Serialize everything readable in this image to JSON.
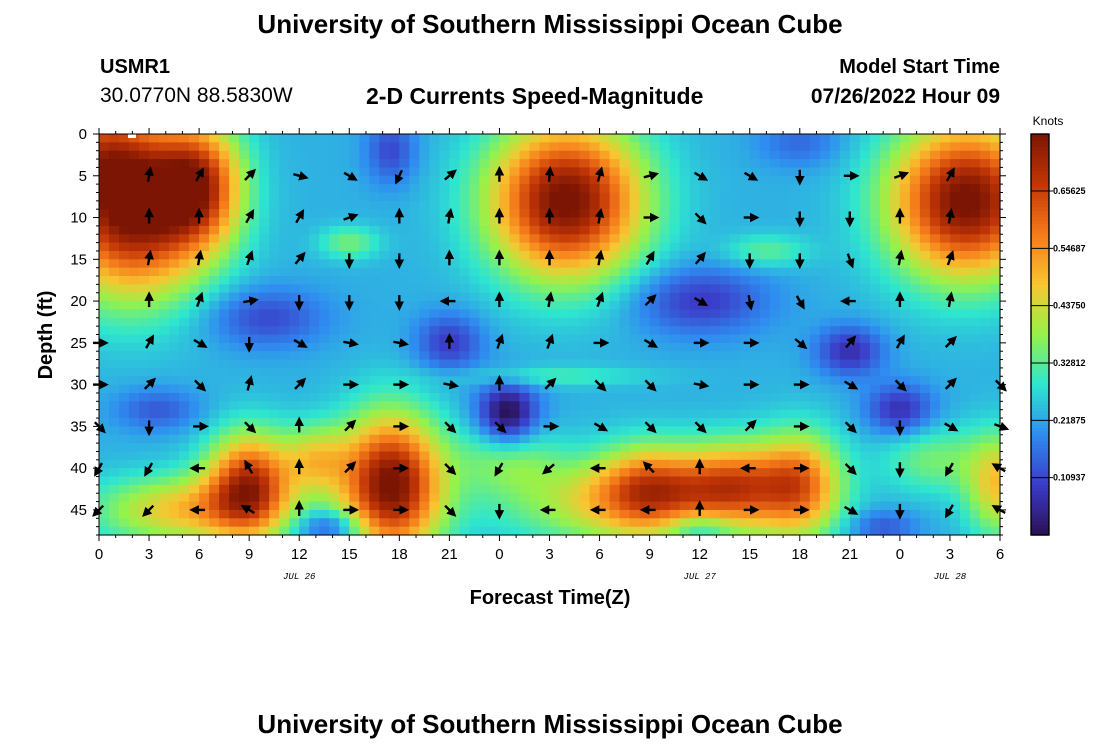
{
  "header": {
    "title": "University of Southern Mississippi Ocean Cube",
    "station": "USMR1",
    "coords": "30.0770N  88.5830W",
    "subtitle": "2-D Currents Speed-Magnitude",
    "start_label": "Model Start Time",
    "start_value": "07/26/2022 Hour 09"
  },
  "footer": {
    "title": "University of Southern Mississippi Ocean Cube"
  },
  "colors": {
    "colormap": [
      "#2a1055",
      "#3b3bc8",
      "#2f8cf0",
      "#2ee6cf",
      "#96f24a",
      "#f8c630",
      "#f57a1a",
      "#c23606",
      "#7c1503"
    ]
  },
  "chart_data": {
    "type": "heatmap",
    "title": "2-D Currents Speed-Magnitude",
    "xlabel": "Forecast Time(Z)",
    "ylabel": "Depth (ft)",
    "xlim": [
      0,
      54
    ],
    "ylim": [
      0,
      48
    ],
    "x_ticks": [
      0,
      3,
      6,
      9,
      12,
      15,
      18,
      21,
      24,
      27,
      30,
      33,
      36,
      39,
      42,
      45,
      48,
      51,
      54
    ],
    "x_tick_labels": [
      "0",
      "3",
      "6",
      "9",
      "12",
      "15",
      "18",
      "21",
      "0",
      "3",
      "6",
      "9",
      "12",
      "15",
      "18",
      "21",
      "0",
      "3",
      "6"
    ],
    "y_ticks": [
      0,
      5,
      10,
      15,
      20,
      25,
      30,
      35,
      40,
      45
    ],
    "y_tick_labels": [
      "0",
      "5",
      "10",
      "15",
      "20",
      "25",
      "30",
      "35",
      "40",
      "45"
    ],
    "date_labels": [
      {
        "x": 12,
        "text": "JUL 26"
      },
      {
        "x": 36,
        "text": "JUL 27"
      },
      {
        "x": 51,
        "text": "JUL 28"
      }
    ],
    "colorbar": {
      "title": "Knots",
      "range": [
        0,
        0.765
      ],
      "ticks": [
        0.65625,
        0.54687,
        0.4375,
        0.32812,
        0.21875,
        0.10937
      ],
      "tick_labels": [
        "0.65625",
        "0.54687",
        "0.43750",
        "0.32812",
        "0.21875",
        "0.10937"
      ]
    },
    "field": {
      "base": 0.23,
      "features": [
        {
          "x": 2,
          "y": 9,
          "sx": 4.5,
          "sy": 10,
          "v": 0.55
        },
        {
          "x": 0,
          "y": 2,
          "sx": 3,
          "sy": 6,
          "v": 0.2
        },
        {
          "x": 6,
          "y": 6,
          "sx": 2.5,
          "sy": 7,
          "v": 0.35
        },
        {
          "x": 28,
          "y": 8,
          "sx": 4.5,
          "sy": 9,
          "v": 0.55
        },
        {
          "x": 52,
          "y": 8,
          "sx": 4.5,
          "sy": 9,
          "v": 0.55
        },
        {
          "x": 17.5,
          "y": 42,
          "sx": 3,
          "sy": 8,
          "v": 0.55
        },
        {
          "x": 9,
          "y": 42,
          "sx": 2.5,
          "sy": 6,
          "v": 0.45
        },
        {
          "x": 5,
          "y": 45,
          "sx": 5,
          "sy": 4,
          "v": 0.25
        },
        {
          "x": 32,
          "y": 44,
          "sx": 7,
          "sy": 5,
          "v": 0.25
        },
        {
          "x": 33,
          "y": 42,
          "sx": 3,
          "sy": 5,
          "v": 0.25
        },
        {
          "x": 38,
          "y": 42,
          "sx": 3,
          "sy": 5,
          "v": 0.32
        },
        {
          "x": 42,
          "y": 42,
          "sx": 2.5,
          "sy": 6,
          "v": 0.35
        },
        {
          "x": 54,
          "y": 42,
          "sx": 2,
          "sy": 6,
          "v": 0.25
        },
        {
          "x": 13,
          "y": 39,
          "sx": 2,
          "sy": 4,
          "v": 0.2
        },
        {
          "x": 24.5,
          "y": 39,
          "sx": 3,
          "sy": 4,
          "v": 0.12
        },
        {
          "x": 24.5,
          "y": 34,
          "sx": 1.6,
          "sy": 4,
          "v": -0.15
        },
        {
          "x": 50,
          "y": 39,
          "sx": 3,
          "sy": 4,
          "v": 0.12
        },
        {
          "x": 14,
          "y": 47,
          "sx": 2,
          "sy": 2,
          "v": -0.15
        },
        {
          "x": 36,
          "y": 47,
          "sx": 2,
          "sy": 2,
          "v": -0.12
        },
        {
          "x": 47,
          "y": 47,
          "sx": 2,
          "sy": 2,
          "v": -0.1
        },
        {
          "x": 10,
          "y": 22,
          "sx": 3.5,
          "sy": 3.5,
          "v": -0.12
        },
        {
          "x": 21,
          "y": 25,
          "sx": 2,
          "sy": 3.5,
          "v": -0.14
        },
        {
          "x": 36,
          "y": 20,
          "sx": 4,
          "sy": 4,
          "v": -0.14
        },
        {
          "x": 45,
          "y": 26,
          "sx": 2,
          "sy": 3,
          "v": -0.16
        },
        {
          "x": 48,
          "y": 33,
          "sx": 2,
          "sy": 3,
          "v": -0.16
        },
        {
          "x": 3.5,
          "y": 33,
          "sx": 2.5,
          "sy": 2.5,
          "v": -0.1
        },
        {
          "x": 24.5,
          "y": 33,
          "sx": 2,
          "sy": 3,
          "v": -0.1
        },
        {
          "x": 17.5,
          "y": 2,
          "sx": 1.5,
          "sy": 4,
          "v": -0.12
        },
        {
          "x": 42,
          "y": 1,
          "sx": 2.5,
          "sy": 3,
          "v": -0.08
        },
        {
          "x": 15,
          "y": 13,
          "sx": 1.8,
          "sy": 2,
          "v": 0.12
        },
        {
          "x": 40,
          "y": 14,
          "sx": 2.5,
          "sy": 2,
          "v": 0.1
        },
        {
          "x": 27,
          "y": 29,
          "sx": 6,
          "sy": 1.2,
          "v": 0.08
        }
      ]
    },
    "vectors": {
      "times": [
        0,
        3,
        6,
        9,
        12,
        15,
        18,
        21,
        24,
        27,
        30,
        33,
        36,
        39,
        42,
        45,
        48,
        51,
        54
      ],
      "depths": [
        5,
        10,
        15,
        20,
        25,
        30,
        35,
        40,
        45
      ],
      "angles_deg": [
        [
          null,
          10,
          30,
          45,
          105,
          120,
          205,
          50,
          0,
          5,
          15,
          75,
          120,
          120,
          180,
          90,
          70,
          30,
          null
        ],
        [
          null,
          0,
          0,
          30,
          30,
          70,
          0,
          10,
          0,
          0,
          10,
          90,
          135,
          90,
          180,
          180,
          0,
          10,
          null
        ],
        [
          null,
          10,
          10,
          20,
          40,
          180,
          180,
          0,
          0,
          0,
          10,
          30,
          40,
          180,
          180,
          160,
          10,
          20,
          null
        ],
        [
          null,
          0,
          20,
          80,
          180,
          180,
          180,
          270,
          0,
          10,
          20,
          45,
          120,
          170,
          150,
          270,
          0,
          10,
          null
        ],
        [
          90,
          30,
          120,
          180,
          120,
          100,
          100,
          0,
          20,
          20,
          90,
          120,
          90,
          90,
          130,
          40,
          30,
          45,
          null
        ],
        [
          90,
          45,
          135,
          15,
          45,
          90,
          90,
          100,
          0,
          45,
          135,
          135,
          100,
          90,
          90,
          120,
          135,
          45,
          135
        ],
        [
          135,
          180,
          90,
          135,
          0,
          45,
          90,
          135,
          135,
          90,
          120,
          135,
          135,
          45,
          90,
          135,
          180,
          120,
          110
        ],
        [
          210,
          210,
          270,
          330,
          0,
          45,
          90,
          135,
          210,
          230,
          270,
          315,
          0,
          270,
          90,
          135,
          180,
          210,
          300
        ],
        [
          225,
          225,
          270,
          300,
          0,
          90,
          90,
          135,
          180,
          270,
          270,
          270,
          0,
          90,
          90,
          120,
          180,
          210,
          300
        ]
      ]
    }
  }
}
